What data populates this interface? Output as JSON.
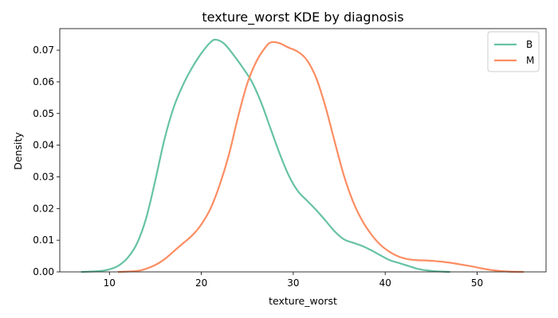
{
  "chart_data": {
    "type": "line",
    "title": "texture_worst KDE by diagnosis",
    "xlabel": "texture_worst",
    "ylabel": "Density",
    "xlim": [
      4.6,
      57.5
    ],
    "ylim": [
      0,
      0.0768
    ],
    "xticks": [
      10,
      20,
      30,
      40,
      50
    ],
    "yticks": [
      0.0,
      0.01,
      0.02,
      0.03,
      0.04,
      0.05,
      0.06,
      0.07
    ],
    "xtick_labels": [
      "10",
      "20",
      "30",
      "40",
      "50"
    ],
    "ytick_labels": [
      "0.00",
      "0.01",
      "0.02",
      "0.03",
      "0.04",
      "0.05",
      "0.06",
      "0.07"
    ],
    "grid": false,
    "legend_position": "top-right",
    "series": [
      {
        "name": "B",
        "color": "#66c2a5",
        "points": [
          [
            7,
            0
          ],
          [
            9,
            0.0003
          ],
          [
            10,
            0.0008
          ],
          [
            11,
            0.002
          ],
          [
            12,
            0.0045
          ],
          [
            13,
            0.009
          ],
          [
            14,
            0.017
          ],
          [
            15,
            0.029
          ],
          [
            16,
            0.042
          ],
          [
            17,
            0.052
          ],
          [
            18,
            0.059
          ],
          [
            19,
            0.0645
          ],
          [
            20,
            0.069
          ],
          [
            21,
            0.0725
          ],
          [
            21.6,
            0.0733
          ],
          [
            22.5,
            0.072
          ],
          [
            23.5,
            0.0685
          ],
          [
            24.5,
            0.0645
          ],
          [
            25.5,
            0.06
          ],
          [
            26.5,
            0.0535
          ],
          [
            27.5,
            0.0455
          ],
          [
            28.5,
            0.0375
          ],
          [
            29.5,
            0.0305
          ],
          [
            30.5,
            0.0255
          ],
          [
            31.5,
            0.0225
          ],
          [
            32.5,
            0.0195
          ],
          [
            33.5,
            0.0162
          ],
          [
            34.5,
            0.0128
          ],
          [
            35.5,
            0.0103
          ],
          [
            36.5,
            0.0092
          ],
          [
            37.5,
            0.0082
          ],
          [
            38.5,
            0.0068
          ],
          [
            39.5,
            0.0052
          ],
          [
            40.5,
            0.0037
          ],
          [
            41.5,
            0.0028
          ],
          [
            42.5,
            0.0019
          ],
          [
            43.5,
            0.001
          ],
          [
            44.5,
            0.0005
          ],
          [
            45.5,
            0.0002
          ],
          [
            47,
            0
          ]
        ]
      },
      {
        "name": "M",
        "color": "#fc8d62",
        "points": [
          [
            11,
            0
          ],
          [
            13,
            0.0003
          ],
          [
            14,
            0.001
          ],
          [
            15,
            0.0022
          ],
          [
            16,
            0.004
          ],
          [
            17,
            0.0065
          ],
          [
            18,
            0.009
          ],
          [
            19,
            0.0115
          ],
          [
            20,
            0.015
          ],
          [
            21,
            0.02
          ],
          [
            22,
            0.0275
          ],
          [
            23,
            0.037
          ],
          [
            24,
            0.049
          ],
          [
            25,
            0.0595
          ],
          [
            26,
            0.0665
          ],
          [
            27,
            0.071
          ],
          [
            27.6,
            0.0725
          ],
          [
            28.5,
            0.0722
          ],
          [
            29.5,
            0.0708
          ],
          [
            30.5,
            0.0695
          ],
          [
            31.5,
            0.0668
          ],
          [
            32.5,
            0.0612
          ],
          [
            33.5,
            0.0522
          ],
          [
            34.5,
            0.0412
          ],
          [
            35.5,
            0.0305
          ],
          [
            36.5,
            0.0222
          ],
          [
            37.5,
            0.0162
          ],
          [
            38.5,
            0.0118
          ],
          [
            39.5,
            0.0085
          ],
          [
            40.5,
            0.0063
          ],
          [
            41.5,
            0.0048
          ],
          [
            42.5,
            0.004
          ],
          [
            43.5,
            0.0037
          ],
          [
            44.5,
            0.0036
          ],
          [
            45.5,
            0.0034
          ],
          [
            46.5,
            0.0031
          ],
          [
            47.5,
            0.0027
          ],
          [
            48.5,
            0.0022
          ],
          [
            49.5,
            0.0017
          ],
          [
            50.5,
            0.0011
          ],
          [
            51.5,
            0.0006
          ],
          [
            52.5,
            0.0003
          ],
          [
            53.5,
            0.0001
          ],
          [
            55,
            0
          ]
        ]
      }
    ]
  }
}
